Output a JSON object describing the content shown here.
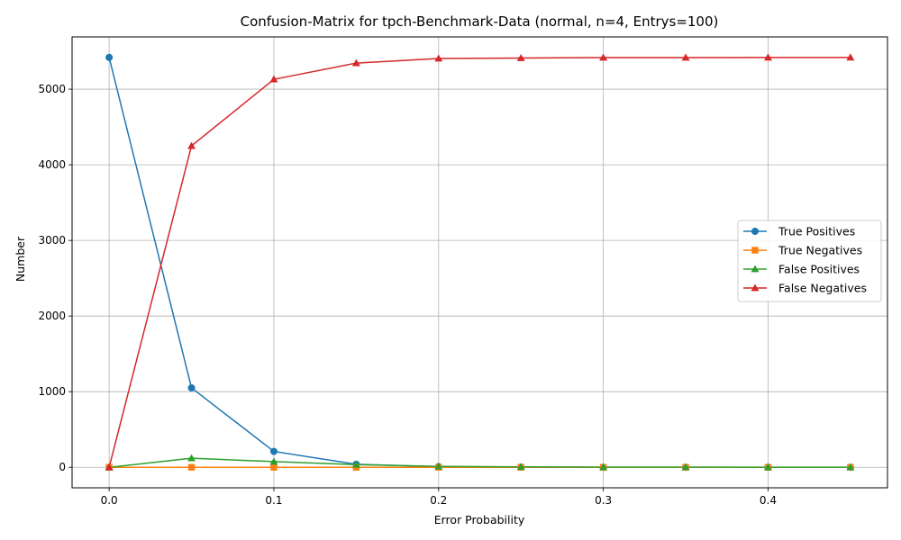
{
  "chart_data": {
    "type": "line",
    "title": "Confusion-Matrix for tpch-Benchmark-Data (normal, n=4, Entrys=100)",
    "xlabel": "Error Probability",
    "ylabel": "Number",
    "x": [
      0.0,
      0.05,
      0.1,
      0.15,
      0.2,
      0.25,
      0.3,
      0.35,
      0.4,
      0.45
    ],
    "xlim": [
      -0.0225,
      0.4725
    ],
    "ylim": [
      -271,
      5691
    ],
    "xticks": [
      0.0,
      0.1,
      0.2,
      0.3,
      0.4
    ],
    "xtick_labels": [
      "0.0",
      "0.1",
      "0.2",
      "0.3",
      "0.4"
    ],
    "yticks": [
      0,
      1000,
      2000,
      3000,
      4000,
      5000
    ],
    "ytick_labels": [
      "0",
      "1000",
      "2000",
      "3000",
      "4000",
      "5000"
    ],
    "grid": true,
    "legend_position": "center-right",
    "series": [
      {
        "name": "True Positives",
        "color": "#1f77b4",
        "marker": "circle",
        "values": [
          5420,
          1050,
          210,
          40,
          8,
          2,
          0,
          0,
          0,
          0
        ]
      },
      {
        "name": "True Negatives",
        "color": "#ff7f0e",
        "marker": "square",
        "values": [
          0,
          0,
          0,
          0,
          0,
          0,
          0,
          0,
          0,
          0
        ]
      },
      {
        "name": "False Positives",
        "color": "#2ca02c",
        "marker": "triangle",
        "values": [
          0,
          120,
          75,
          35,
          12,
          5,
          3,
          2,
          1,
          1
        ]
      },
      {
        "name": "False Negatives",
        "color": "#d62728",
        "marker": "triangle",
        "values": [
          0,
          4250,
          5130,
          5345,
          5405,
          5412,
          5417,
          5418,
          5419,
          5419
        ]
      }
    ]
  }
}
